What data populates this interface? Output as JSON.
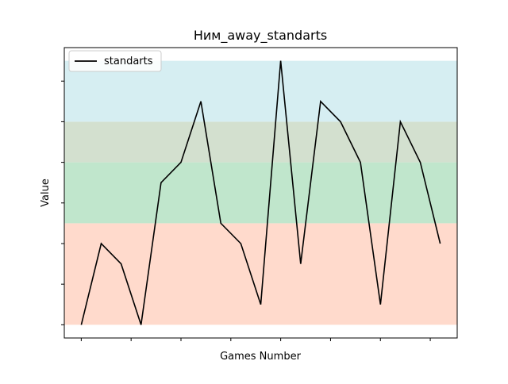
{
  "chart_data": {
    "type": "line",
    "title": "Ним_away_standarts",
    "xlabel": "Games Number",
    "ylabel": "Value",
    "x": [
      1,
      2,
      3,
      4,
      5,
      6,
      7,
      8,
      9,
      10,
      11,
      12,
      13,
      14,
      15,
      16,
      17,
      18,
      19
    ],
    "series": [
      {
        "name": "standarts",
        "color": "#000000",
        "values": [
          0,
          4,
          3,
          0,
          7,
          8,
          11,
          5,
          4,
          1,
          13,
          3,
          11,
          10,
          8,
          1,
          10,
          8,
          4
        ]
      }
    ],
    "xlim": [
      0.15,
      19.85
    ],
    "ylim": [
      -0.65,
      13.65
    ],
    "bands": [
      {
        "from": 0,
        "to": 5,
        "color": "#ffdacc"
      },
      {
        "from": 5,
        "to": 8,
        "color": "#c0e6cc"
      },
      {
        "from": 8,
        "to": 10,
        "color": "#d3e0cf"
      },
      {
        "from": 10,
        "to": 13,
        "color": "#d6eef2"
      }
    ],
    "x_ticks": [
      1,
      3.5,
      6,
      8.5,
      11,
      13.5,
      16,
      18.5
    ],
    "y_ticks": [
      0,
      2,
      4,
      6,
      8,
      10,
      12
    ],
    "tick_labels_visible": false,
    "grid": false,
    "legend": {
      "placement": "top-left"
    }
  }
}
